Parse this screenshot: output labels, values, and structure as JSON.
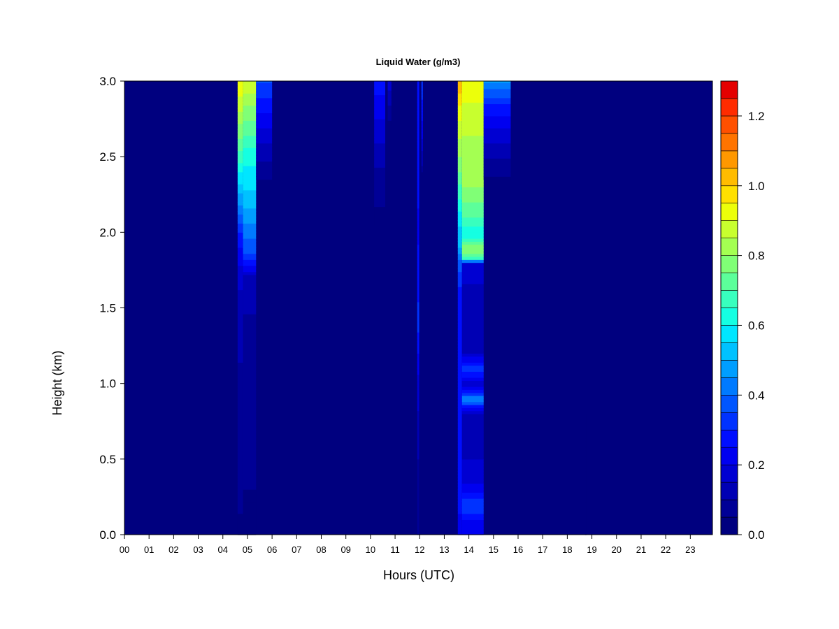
{
  "chart_data": {
    "type": "heatmap",
    "title": "Liquid Water (g/m3)",
    "xlabel": "Hours (UTC)",
    "ylabel": "Height (km)",
    "xlim": [
      0,
      23.9
    ],
    "ylim": [
      0.0,
      3.0
    ],
    "x_tick_labels": [
      "00",
      "01",
      "02",
      "03",
      "04",
      "05",
      "06",
      "07",
      "08",
      "09",
      "10",
      "11",
      "12",
      "13",
      "14",
      "15",
      "16",
      "17",
      "18",
      "19",
      "20",
      "21",
      "22",
      "23"
    ],
    "y_ticks": [
      0.0,
      0.5,
      1.0,
      1.5,
      2.0,
      2.5,
      3.0
    ],
    "y_tick_labels": [
      "0.0",
      "0.5",
      "1.0",
      "1.5",
      "2.0",
      "2.5",
      "3.0"
    ],
    "grid": false,
    "colorbar": {
      "position": "right",
      "min": 0.0,
      "max": 1.3,
      "levels": 26,
      "ticks": [
        0.0,
        0.2,
        0.4,
        0.6,
        0.8,
        1.0,
        1.2
      ],
      "tick_labels": [
        "0.0",
        "0.2",
        "0.4",
        "0.6",
        "0.8",
        "1.0",
        "1.2"
      ],
      "colors": [
        "#00007f",
        "#000096",
        "#0000b4",
        "#0000d2",
        "#0000f0",
        "#000eff",
        "#0032ff",
        "#0056ff",
        "#007aff",
        "#009eff",
        "#00c2ff",
        "#00e6ff",
        "#15ffe2",
        "#38ffbe",
        "#5cff9a",
        "#80ff76",
        "#a4ff52",
        "#c8ff2e",
        "#ecff0a",
        "#ffe000",
        "#ffbc00",
        "#ff9800",
        "#ff7400",
        "#ff5000",
        "#ff2c00",
        "#e40000",
        "#b40000",
        "#800000"
      ]
    },
    "background_value": 0.0,
    "features": [
      {
        "name": "cloud 04:40-04:50",
        "t_start": 4.6,
        "t_end": 4.82,
        "top_km": 3.0,
        "bottom_km": 0.0,
        "profile": [
          [
            3.0,
            0.95
          ],
          [
            2.8,
            0.85
          ],
          [
            2.5,
            0.68
          ],
          [
            2.2,
            0.46
          ],
          [
            2.0,
            0.3
          ],
          [
            1.7,
            0.16
          ],
          [
            1.3,
            0.11
          ],
          [
            0.8,
            0.08
          ],
          [
            0.3,
            0.06
          ],
          [
            0.0,
            0.04
          ]
        ]
      },
      {
        "name": "cloud 04:50-05:20",
        "t_start": 4.82,
        "t_end": 5.35,
        "top_km": 3.0,
        "bottom_km": 0.0,
        "profile": [
          [
            3.0,
            0.9
          ],
          [
            2.8,
            0.78
          ],
          [
            2.5,
            0.62
          ],
          [
            2.2,
            0.52
          ],
          [
            2.0,
            0.42
          ],
          [
            1.85,
            0.34
          ],
          [
            1.7,
            0.13
          ],
          [
            1.3,
            0.08
          ],
          [
            1.1,
            0.1
          ],
          [
            0.8,
            0.07
          ],
          [
            0.3,
            0.05
          ],
          [
            0.0,
            0.04
          ]
        ]
      },
      {
        "name": "cloud 05:20-06:00",
        "t_start": 5.35,
        "t_end": 6.0,
        "top_km": 3.0,
        "bottom_km": 2.35,
        "profile": [
          [
            3.0,
            0.36
          ],
          [
            2.8,
            0.25
          ],
          [
            2.6,
            0.15
          ],
          [
            2.35,
            0.05
          ]
        ]
      },
      {
        "name": "cloud 10:15-10:40",
        "t_start": 10.15,
        "t_end": 10.6,
        "top_km": 3.0,
        "bottom_km": 2.05,
        "profile": [
          [
            3.0,
            0.28
          ],
          [
            2.7,
            0.18
          ],
          [
            2.4,
            0.09
          ],
          [
            2.05,
            0.03
          ]
        ]
      },
      {
        "name": "cloud 10:45-10:55",
        "t_start": 10.7,
        "t_end": 10.85,
        "top_km": 3.0,
        "bottom_km": 2.7,
        "profile": [
          [
            3.0,
            0.18
          ],
          [
            2.85,
            0.1
          ],
          [
            2.7,
            0.03
          ]
        ]
      },
      {
        "name": "streak 11:55",
        "t_start": 11.9,
        "t_end": 11.98,
        "top_km": 3.0,
        "bottom_km": 0.0,
        "profile": [
          [
            3.0,
            0.3
          ],
          [
            2.0,
            0.24
          ],
          [
            1.4,
            0.32
          ],
          [
            1.0,
            0.18
          ],
          [
            0.5,
            0.1
          ],
          [
            0.0,
            0.06
          ]
        ]
      },
      {
        "name": "streak 12:05",
        "t_start": 12.07,
        "t_end": 12.13,
        "top_km": 3.0,
        "bottom_km": 2.4,
        "profile": [
          [
            3.0,
            0.34
          ],
          [
            2.7,
            0.24
          ],
          [
            2.4,
            0.08
          ]
        ]
      },
      {
        "name": "cloud 13:35-13:40",
        "t_start": 13.55,
        "t_end": 13.72,
        "top_km": 3.0,
        "bottom_km": 0.0,
        "profile": [
          [
            3.0,
            1.05
          ],
          [
            2.8,
            0.92
          ],
          [
            2.5,
            0.8
          ],
          [
            2.2,
            0.64
          ],
          [
            2.0,
            0.52
          ],
          [
            1.9,
            0.5
          ],
          [
            1.8,
            0.38
          ],
          [
            1.6,
            0.28
          ],
          [
            1.3,
            0.26
          ],
          [
            1.0,
            0.25
          ],
          [
            0.6,
            0.25
          ],
          [
            0.3,
            0.26
          ],
          [
            0.0,
            0.24
          ]
        ]
      },
      {
        "name": "cloud 13:40-14:35",
        "t_start": 13.72,
        "t_end": 14.6,
        "top_km": 3.0,
        "bottom_km": 0.0,
        "profile": [
          [
            3.0,
            0.95
          ],
          [
            2.8,
            0.88
          ],
          [
            2.6,
            0.84
          ],
          [
            2.3,
            0.8
          ],
          [
            2.1,
            0.7
          ],
          [
            2.0,
            0.6
          ],
          [
            1.95,
            0.66
          ],
          [
            1.88,
            0.82
          ],
          [
            1.82,
            0.62
          ],
          [
            1.8,
            0.2
          ],
          [
            1.6,
            0.13
          ],
          [
            1.2,
            0.14
          ],
          [
            1.1,
            0.36
          ],
          [
            1.0,
            0.14
          ],
          [
            0.9,
            0.44
          ],
          [
            0.8,
            0.15
          ],
          [
            0.6,
            0.14
          ],
          [
            0.4,
            0.16
          ],
          [
            0.3,
            0.22
          ],
          [
            0.2,
            0.36
          ],
          [
            0.1,
            0.24
          ],
          [
            0.0,
            0.2
          ]
        ]
      },
      {
        "name": "cloud 14:35-15:45",
        "t_start": 14.6,
        "t_end": 15.7,
        "top_km": 3.0,
        "bottom_km": 2.35,
        "profile": [
          [
            3.0,
            0.45
          ],
          [
            2.85,
            0.3
          ],
          [
            2.6,
            0.15
          ],
          [
            2.35,
            0.04
          ]
        ]
      },
      {
        "name": "streak 18:45",
        "t_start": 18.72,
        "t_end": 18.78,
        "top_km": 0.8,
        "bottom_km": 0.0,
        "profile": [
          [
            0.8,
            0.04
          ],
          [
            0.0,
            0.02
          ]
        ]
      }
    ]
  }
}
